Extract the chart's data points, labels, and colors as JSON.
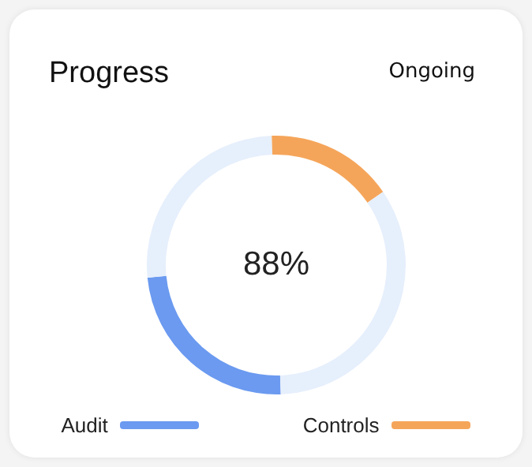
{
  "chart_data": {
    "type": "donut",
    "title": "Progress",
    "annotations": [
      "Ongoing",
      "88%"
    ],
    "categories": [
      "Audit",
      null,
      "Controls",
      null
    ],
    "values": [
      24,
      26,
      16,
      34
    ],
    "colors": [
      "#6b9af0",
      "#e6effc",
      "#f5a55a",
      "#e6effc"
    ],
    "legend": "bottom"
  }
}
